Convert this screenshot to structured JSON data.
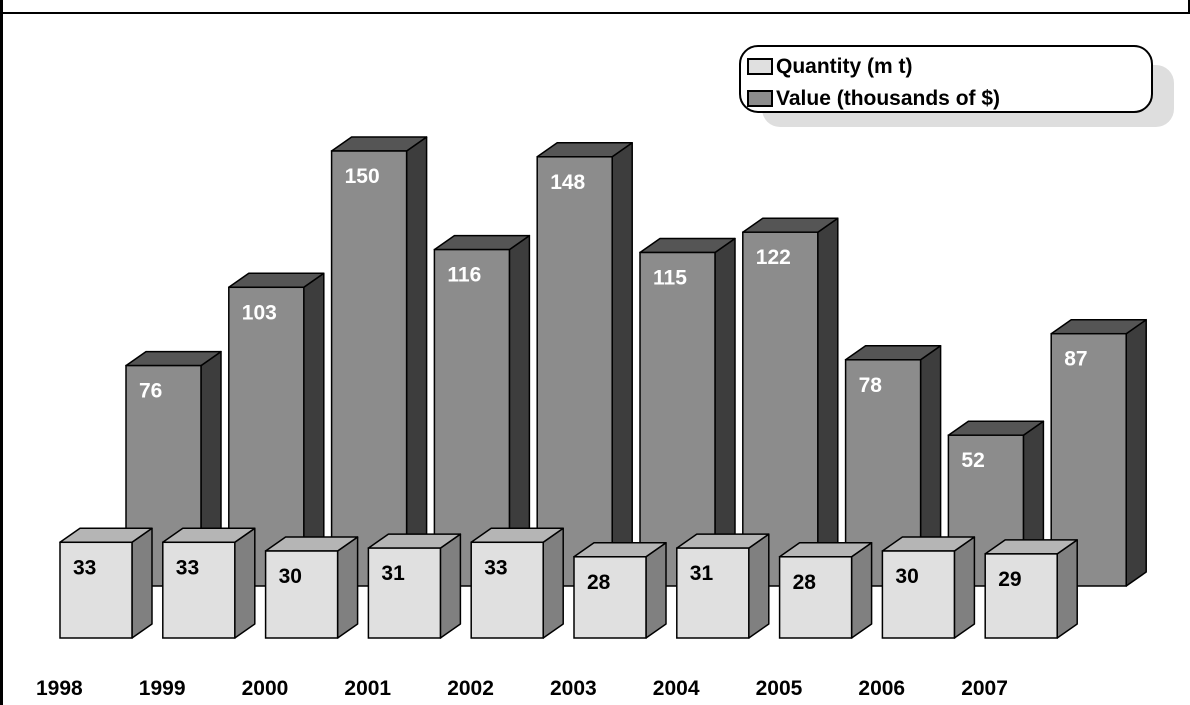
{
  "chart_data": {
    "type": "bar",
    "categories": [
      "1998",
      "1999",
      "2000",
      "2001",
      "2002",
      "2003",
      "2004",
      "2005",
      "2006",
      "2007"
    ],
    "series": [
      {
        "name": "Quantity (m t)",
        "values": [
          33,
          33,
          30,
          31,
          33,
          28,
          31,
          28,
          30,
          29
        ]
      },
      {
        "name": "Value (thousands of $)",
        "values": [
          76,
          103,
          150,
          116,
          148,
          115,
          122,
          78,
          52,
          87
        ]
      }
    ],
    "title": "",
    "xlabel": "",
    "ylabel": "",
    "grid": false,
    "legend": "top-right",
    "three_d": true
  },
  "colors": {
    "quantity_front": "#e0e0e0",
    "quantity_top": "#b5b5b5",
    "quantity_side": "#808080",
    "value_front": "#8c8c8c",
    "value_top": "#555555",
    "value_side": "#3d3d3d",
    "outline": "#000000",
    "legend_shadow": "#dedede"
  }
}
